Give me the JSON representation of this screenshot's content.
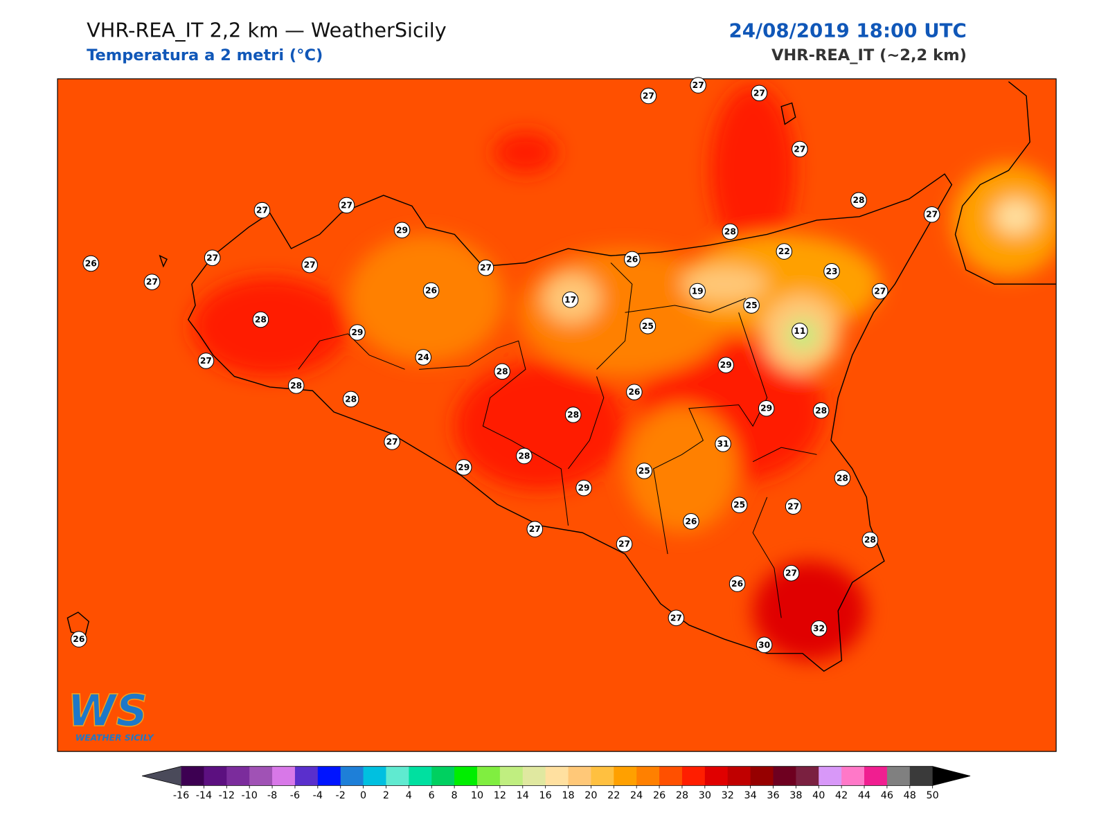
{
  "header": {
    "title": "VHR-REA_IT 2,2 km — WeatherSicily",
    "subtitle": "Temperatura a 2 metri (°C)",
    "datetime": "24/08/2019 18:00 UTC",
    "model": "VHR-REA_IT (~2,2 km)"
  },
  "logo": {
    "text": "WS",
    "caption": "WEATHER SICILY"
  },
  "stations": [
    27,
    27,
    27,
    27,
    28,
    27,
    27,
    27,
    29,
    26,
    27,
    27,
    27,
    27,
    26,
    28,
    22,
    23,
    27,
    26,
    17,
    19,
    25,
    28,
    29,
    25,
    11,
    27,
    24,
    28,
    29,
    28,
    28,
    26,
    28,
    29,
    28,
    27,
    31,
    29,
    28,
    25,
    29,
    28,
    25,
    27,
    27,
    26,
    27,
    28,
    27,
    26,
    27,
    32,
    30,
    26
  ],
  "colorbar": {
    "ticks": [
      -16,
      -14,
      -12,
      -10,
      -8,
      -6,
      -4,
      -2,
      0,
      2,
      4,
      6,
      8,
      10,
      12,
      14,
      16,
      18,
      20,
      22,
      24,
      26,
      28,
      30,
      32,
      34,
      36,
      38,
      40,
      42,
      44,
      46,
      48,
      50
    ],
    "colors": [
      "#3d0052",
      "#5c1080",
      "#7b2c9c",
      "#a052b5",
      "#d878e8",
      "#5a2fcc",
      "#0014ff",
      "#1e7fd8",
      "#00c0e0",
      "#60ead0",
      "#00e0a0",
      "#00d060",
      "#00ee00",
      "#80ee40",
      "#c0ee80",
      "#e0e8a0",
      "#ffe0a0",
      "#ffc878",
      "#ffc040",
      "#ffa000",
      "#ff8000",
      "#ff5000",
      "#ff1e00",
      "#e00000",
      "#c00000",
      "#960000",
      "#6e0020",
      "#7a2040",
      "#d898f8",
      "#ff78c8",
      "#f01e90",
      "#808080",
      "#3a3a3a"
    ],
    "extend_colors": [
      "#4a4a5a",
      "#000000"
    ]
  }
}
